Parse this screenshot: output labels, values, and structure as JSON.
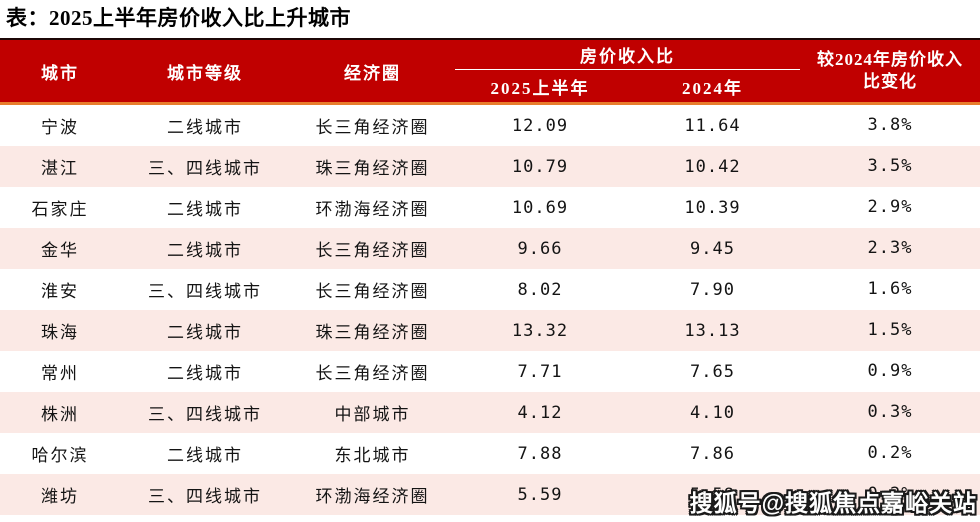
{
  "chart_data": {
    "type": "table",
    "title": "表：2025上半年房价收入比上升城市",
    "header": {
      "city": "城市",
      "tier": "城市等级",
      "circle": "经济圈",
      "ratio_group": "房价收入比",
      "ratio_2025": "2025上半年",
      "ratio_2024": "2024年",
      "change": "较2024年房价收入比变化"
    },
    "rows": [
      [
        "宁波",
        "二线城市",
        "长三角经济圈",
        "12.09",
        "11.64",
        "3.8%"
      ],
      [
        "湛江",
        "三、四线城市",
        "珠三角经济圈",
        "10.79",
        "10.42",
        "3.5%"
      ],
      [
        "石家庄",
        "二线城市",
        "环渤海经济圈",
        "10.69",
        "10.39",
        "2.9%"
      ],
      [
        "金华",
        "二线城市",
        "长三角经济圈",
        "9.66",
        "9.45",
        "2.3%"
      ],
      [
        "淮安",
        "三、四线城市",
        "长三角经济圈",
        "8.02",
        "7.90",
        "1.6%"
      ],
      [
        "珠海",
        "二线城市",
        "珠三角经济圈",
        "13.32",
        "13.13",
        "1.5%"
      ],
      [
        "常州",
        "二线城市",
        "长三角经济圈",
        "7.71",
        "7.65",
        "0.9%"
      ],
      [
        "株洲",
        "三、四线城市",
        "中部城市",
        "4.12",
        "4.10",
        "0.3%"
      ],
      [
        "哈尔滨",
        "二线城市",
        "东北城市",
        "7.88",
        "7.86",
        "0.2%"
      ],
      [
        "潍坊",
        "三、四线城市",
        "环渤海经济圈",
        "5.59",
        "5.58",
        "0.2%"
      ]
    ],
    "layout": {
      "row_striping": "white / light pink alternating",
      "header_rows": 2,
      "grouped_columns": [
        "2025上半年",
        "2024年"
      ]
    }
  },
  "watermark": "搜狐号@搜狐焦点嘉峪关站",
  "colors": {
    "header_bg": "#C00000",
    "header_text": "#FFFFFF",
    "header_top_line": "#1C0606",
    "header_bottom_line": "#E87D2C",
    "stripe_pink": "#FBE9E5",
    "body_text": "#141414"
  }
}
